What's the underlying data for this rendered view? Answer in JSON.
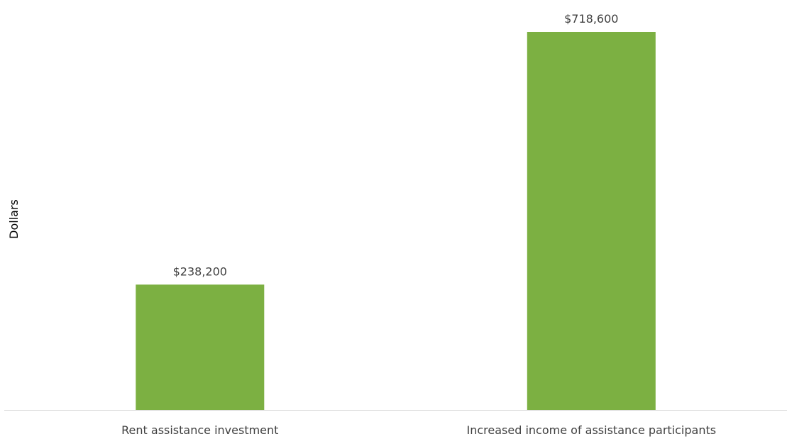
{
  "chart_data": {
    "type": "bar",
    "categories": [
      "Rent assistance investment",
      "Increased income of assistance participants"
    ],
    "values": [
      238200,
      718600
    ],
    "data_labels": [
      "$238,200",
      "$718,600"
    ],
    "title": "",
    "xlabel": "",
    "ylabel": "Dollars",
    "ylim": [
      0,
      800000
    ],
    "grid": false,
    "legend": "none",
    "bar_color": "#7cb042",
    "axis_color": "#d9d9d9"
  }
}
